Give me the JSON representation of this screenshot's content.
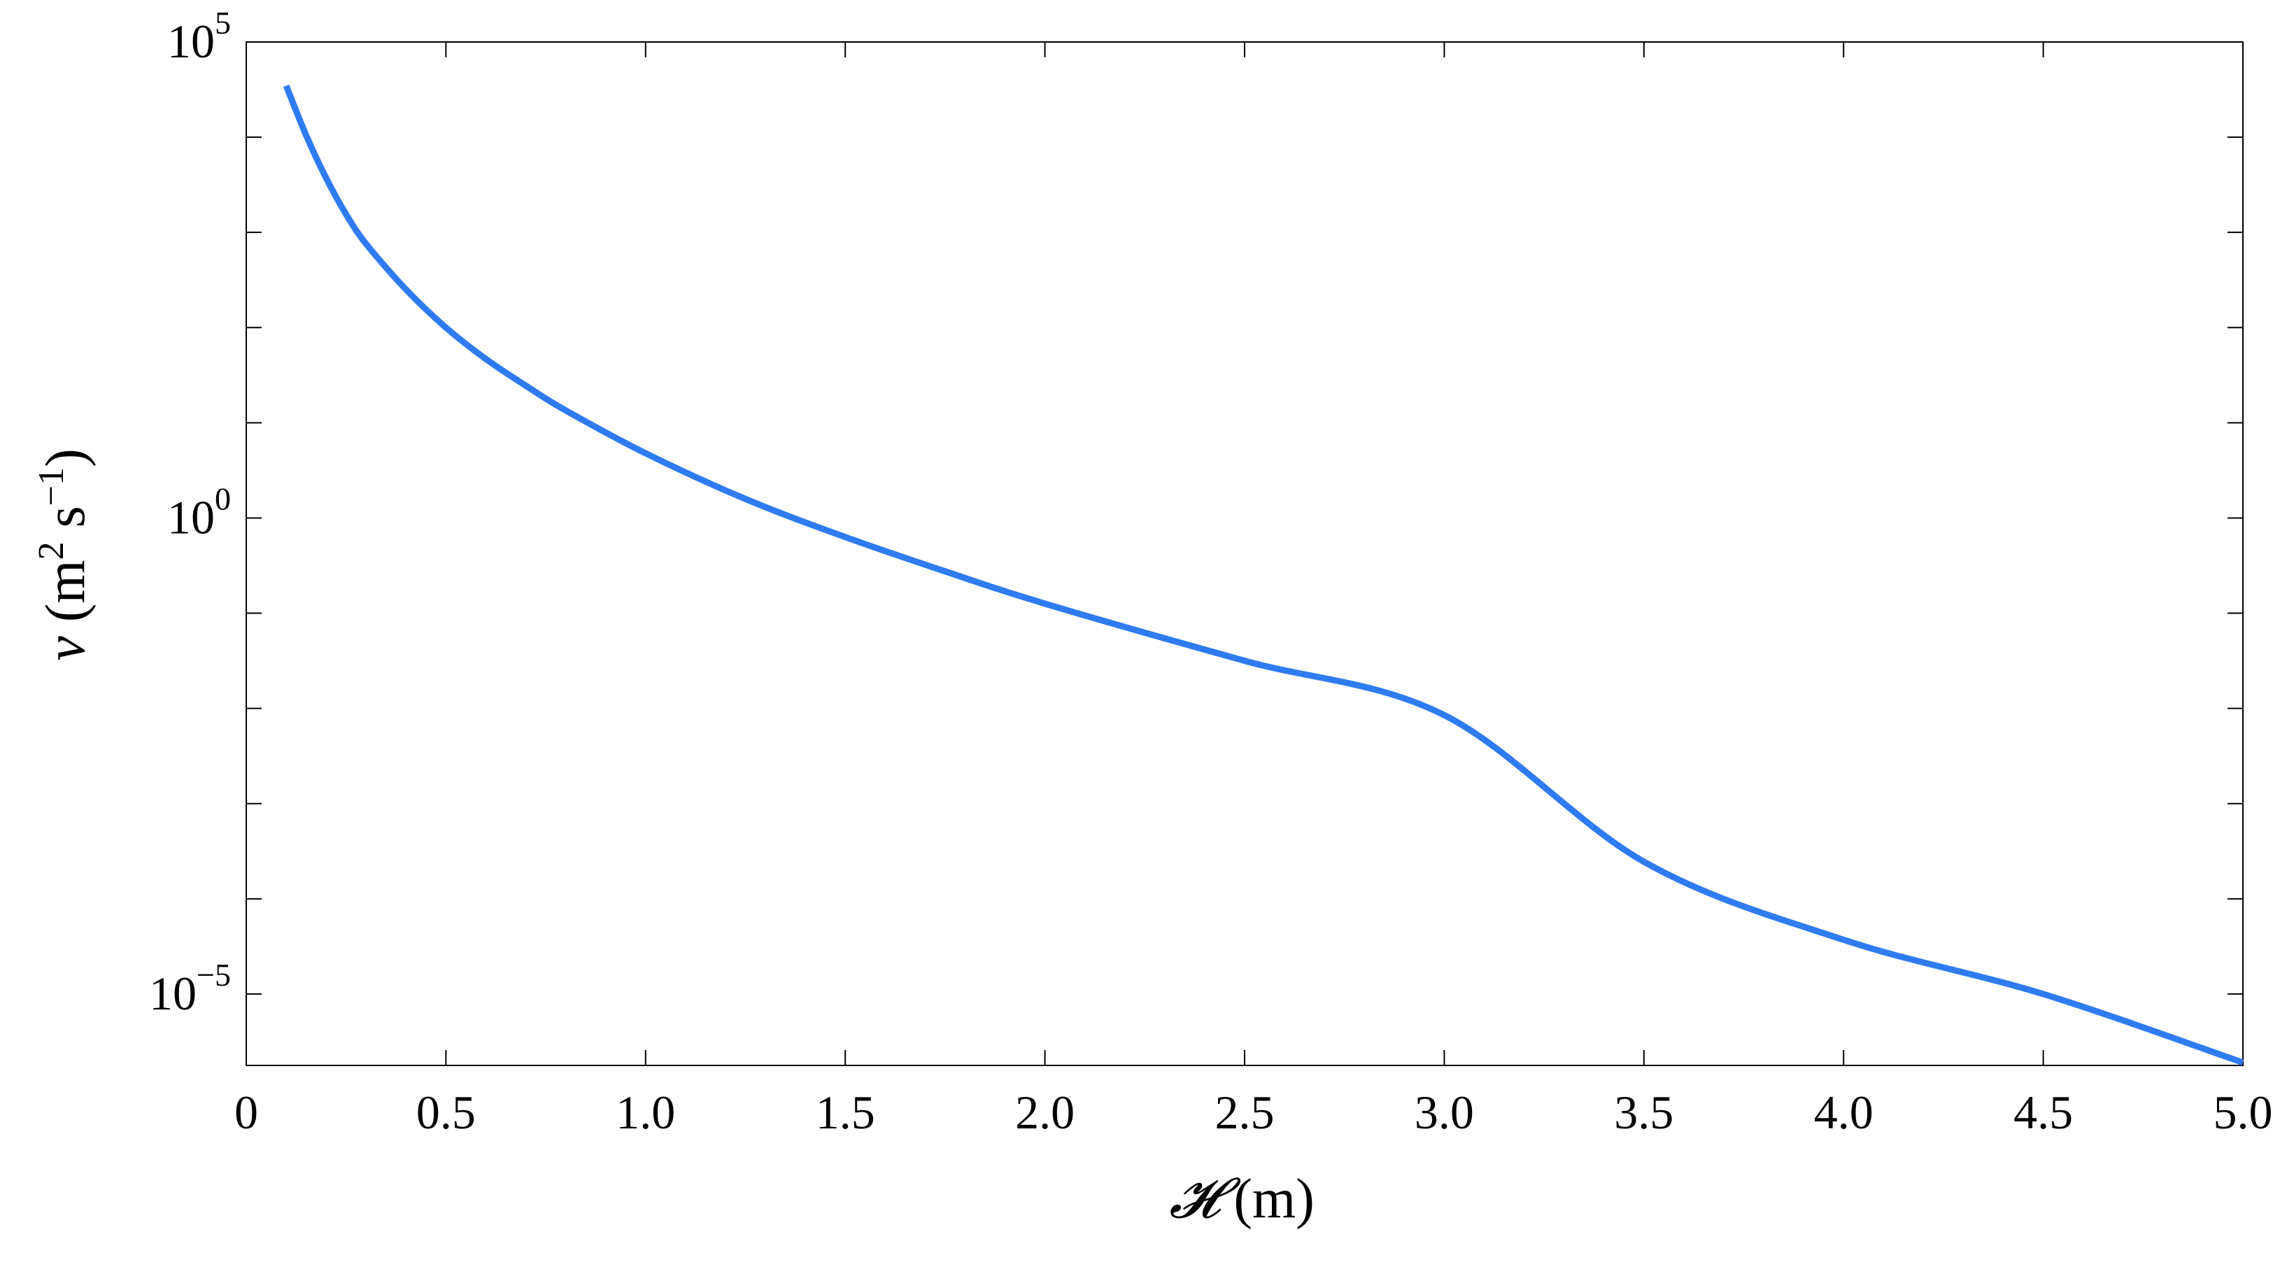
{
  "chart_data": {
    "type": "line",
    "title": "",
    "xlabel_symbol": "𝓗",
    "xlabel_unit": " (m)",
    "ylabel_symbol": "ν",
    "ylabel_unit_open": " (m",
    "ylabel_sq": "2",
    "ylabel_s": " s",
    "ylabel_exp": "−1",
    "ylabel_close": ")",
    "xlim": [
      0,
      5.0
    ],
    "ylim_log10": [
      -5.75,
      5
    ],
    "yscale": "log",
    "grid": false,
    "x_ticks": [
      {
        "value": 0,
        "label": "0"
      },
      {
        "value": 0.5,
        "label": "0.5"
      },
      {
        "value": 1.0,
        "label": "1.0"
      },
      {
        "value": 1.5,
        "label": "1.5"
      },
      {
        "value": 2.0,
        "label": "2.0"
      },
      {
        "value": 2.5,
        "label": "2.5"
      },
      {
        "value": 3.0,
        "label": "3.0"
      },
      {
        "value": 3.5,
        "label": "3.5"
      },
      {
        "value": 4.0,
        "label": "4.0"
      },
      {
        "value": 4.5,
        "label": "4.5"
      },
      {
        "value": 5.0,
        "label": "5.0"
      }
    ],
    "y_ticks_major": [
      {
        "value_log10": 5,
        "base": "10",
        "exp": "5"
      },
      {
        "value_log10": 0,
        "base": "10",
        "exp": "0"
      },
      {
        "value_log10": -5,
        "base": "10",
        "exp": "−5"
      }
    ],
    "y_ticks_minor_log10": [
      4,
      3,
      2,
      1,
      -1,
      -2,
      -3,
      -4
    ],
    "series": [
      {
        "color": "#2f7bf2",
        "x": [
          0.1,
          0.15,
          0.2,
          0.25,
          0.3,
          0.4,
          0.5,
          0.6,
          0.7,
          0.8,
          1.0,
          1.25,
          1.5,
          1.75,
          2.0,
          2.5,
          3.0,
          3.5,
          4.0,
          4.5,
          5.0
        ],
        "y_log10": [
          4.54,
          4.02,
          3.57,
          3.19,
          2.88,
          2.4,
          2.0,
          1.67,
          1.39,
          1.13,
          0.68,
          0.2,
          -0.2,
          -0.56,
          -0.9,
          -1.5,
          -2.07,
          -3.61,
          -4.43,
          -5.0,
          -5.72
        ]
      }
    ]
  }
}
